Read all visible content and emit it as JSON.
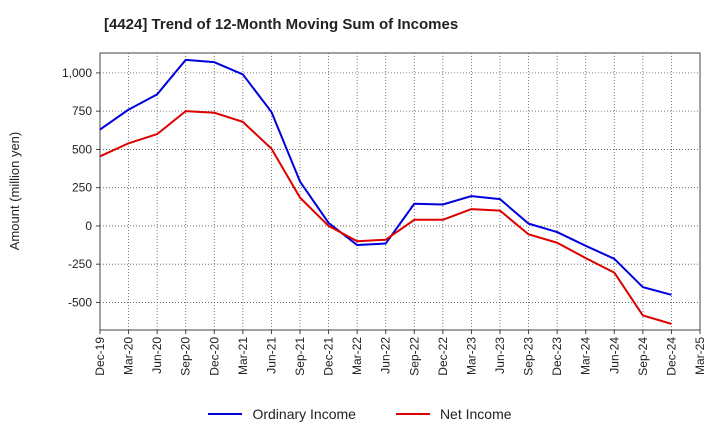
{
  "title": "[4424]  Trend of 12-Month Moving Sum of Incomes",
  "chart_data": {
    "type": "line",
    "ylabel": "Amount (million yen)",
    "xlabel": "",
    "ylim": [
      -680,
      1130
    ],
    "yticks": [
      -500,
      -250,
      0,
      250,
      500,
      750,
      1000
    ],
    "ytick_labels": [
      "-500",
      "-250",
      "0",
      "250",
      "500",
      "750",
      "1,000"
    ],
    "x": [
      "Dec-19",
      "Mar-20",
      "Jun-20",
      "Sep-20",
      "Dec-20",
      "Mar-21",
      "Jun-21",
      "Sep-21",
      "Dec-21",
      "Mar-22",
      "Jun-22",
      "Sep-22",
      "Dec-22",
      "Mar-23",
      "Jun-23",
      "Sep-23",
      "Dec-23",
      "Mar-24",
      "Jun-24",
      "Sep-24",
      "Dec-24",
      "Mar-25"
    ],
    "grid": true,
    "legend_position": "bottom",
    "series": [
      {
        "name": "Ordinary Income",
        "color": "#0000dd",
        "values": [
          630,
          760,
          860,
          1085,
          1070,
          990,
          745,
          290,
          20,
          -125,
          -115,
          145,
          140,
          195,
          175,
          15,
          -40,
          -130,
          -215,
          -400,
          -450,
          null
        ]
      },
      {
        "name": "Net Income",
        "color": "#dd0000",
        "values": [
          455,
          540,
          600,
          750,
          740,
          680,
          505,
          185,
          0,
          -100,
          -90,
          40,
          40,
          110,
          100,
          -55,
          -110,
          -210,
          -305,
          -585,
          -640,
          null
        ]
      }
    ]
  }
}
